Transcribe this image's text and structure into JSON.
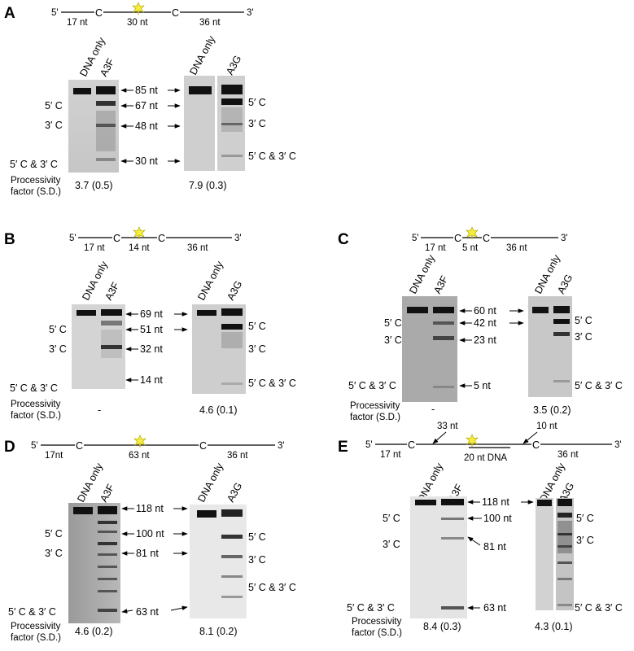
{
  "panels": [
    {
      "label": "A",
      "schematic": {
        "prime5": "5'",
        "prime3": "3'",
        "c1": "C",
        "c2": "C",
        "seg1": "17 nt",
        "seg2": "30 nt",
        "seg3": "36 nt"
      },
      "gel_left": {
        "lanes": [
          "DNA only",
          "A3F"
        ]
      },
      "gel_right": {
        "lanes": [
          "DNA only",
          "A3G"
        ]
      },
      "sizes": [
        "85 nt",
        "67 nt",
        "48 nt",
        "30 nt"
      ],
      "left_labels": [
        "5′ C",
        "3′ C",
        "5′ C & 3′ C"
      ],
      "right_labels": [
        "5′ C",
        "3′ C",
        "5′ C & 3′ C"
      ],
      "pf_label": [
        "Processivity",
        "factor (S.D.)"
      ],
      "pf_left": "3.7 (0.5)",
      "pf_right": "7.9 (0.3)"
    },
    {
      "label": "B",
      "schematic": {
        "prime5": "5'",
        "prime3": "3'",
        "c1": "C",
        "c2": "C",
        "seg1": "17 nt",
        "seg2": "14 nt",
        "seg3": "36 nt"
      },
      "gel_left": {
        "lanes": [
          "DNA only",
          "A3F"
        ]
      },
      "gel_right": {
        "lanes": [
          "DNA only",
          "A3G"
        ]
      },
      "sizes": [
        "69 nt",
        "51 nt",
        "32 nt",
        "14 nt"
      ],
      "left_labels": [
        "5′ C",
        "3′ C",
        "5′ C & 3′ C"
      ],
      "right_labels": [
        "5′ C",
        "3′ C",
        "5′ C & 3′ C"
      ],
      "pf_label": [
        "Processivity",
        "factor (S.D.)"
      ],
      "pf_left": "-",
      "pf_right": "4.6 (0.1)"
    },
    {
      "label": "C",
      "schematic": {
        "prime5": "5'",
        "prime3": "3'",
        "c1": "C",
        "c2": "C",
        "seg1": "17 nt",
        "seg2": "5 nt",
        "seg3": "36 nt"
      },
      "gel_left": {
        "lanes": [
          "DNA only",
          "A3F"
        ]
      },
      "gel_right": {
        "lanes": [
          "DNA only",
          "A3G"
        ]
      },
      "sizes": [
        "60 nt",
        "42 nt",
        "23 nt",
        "5 nt"
      ],
      "left_labels": [
        "5′ C",
        "3′ C",
        "5′ C & 3′ C"
      ],
      "right_labels": [
        "5′ C",
        "3′ C",
        "5′ C & 3′ C"
      ],
      "pf_label": [
        "Processivity",
        "factor (S.D.)"
      ],
      "pf_left": "-",
      "pf_right": "3.5 (0.2)"
    },
    {
      "label": "D",
      "schematic": {
        "prime5": "5'",
        "prime3": "3'",
        "c1": "C",
        "c2": "C",
        "seg1": "17nt",
        "seg2": "63 nt",
        "seg3": "36 nt"
      },
      "gel_left": {
        "lanes": [
          "DNA only",
          "A3F"
        ]
      },
      "gel_right": {
        "lanes": [
          "DNA only",
          "A3G"
        ]
      },
      "sizes": [
        "118 nt",
        "100 nt",
        "81 nt",
        "63 nt"
      ],
      "left_labels": [
        "5′ C",
        "3′ C",
        "5′ C & 3′ C"
      ],
      "right_labels": [
        "5′ C",
        "3′ C",
        "5′ C & 3′ C"
      ],
      "pf_label": [
        "Processivity",
        "factor (S.D.)"
      ],
      "pf_left": "4.6 (0.2)",
      "pf_right": "8.1 (0.2)"
    },
    {
      "label": "E",
      "schematic": {
        "prime5": "5'",
        "prime3": "3'",
        "c1": "C",
        "c2": "C",
        "seg1": "17 nt",
        "seg3": "36 nt",
        "annot1": "33 nt",
        "annot2": "10 nt",
        "dna": "20 nt DNA"
      },
      "gel_left": {
        "lanes": [
          "DNA only",
          "A3F"
        ]
      },
      "gel_right": {
        "lanes": [
          "DNA only",
          "A3G"
        ]
      },
      "sizes": [
        "118 nt",
        "100 nt",
        "81 nt",
        "63 nt"
      ],
      "left_labels": [
        "5′ C",
        "3′ C",
        "5′ C & 3′ C"
      ],
      "right_labels": [
        "5′ C",
        "3′ C",
        "5′ C & 3′ C"
      ],
      "pf_label": [
        "Processivity",
        "factor (S.D.)"
      ],
      "pf_left": "8.4 (0.3)",
      "pf_right": "4.3 (0.1)"
    }
  ]
}
